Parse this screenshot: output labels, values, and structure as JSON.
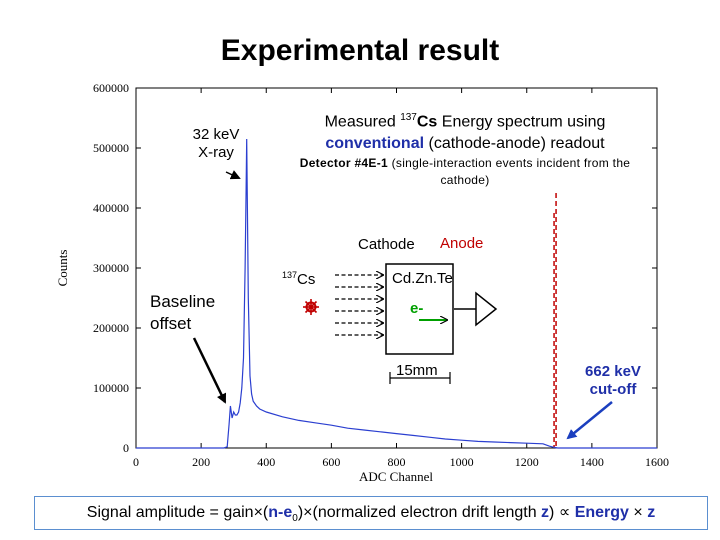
{
  "title": "Experimental result",
  "chart_data": {
    "type": "line",
    "xlabel": "ADC Channel",
    "ylabel": "Counts",
    "xlim": [
      0,
      1600
    ],
    "ylim": [
      0,
      600000
    ],
    "xticks": [
      0,
      200,
      400,
      600,
      800,
      1000,
      1200,
      1400,
      1600
    ],
    "yticks": [
      0,
      100000,
      200000,
      300000,
      400000,
      500000,
      600000
    ],
    "xtick_labels": [
      "0",
      "200",
      "400",
      "600",
      "800",
      "1000",
      "1200",
      "1400",
      "1600"
    ],
    "ytick_labels": [
      "0",
      "100000",
      "200000",
      "300000",
      "400000",
      "500000",
      "600000"
    ],
    "series": [
      {
        "color": "#2b3fd0",
        "x": [
          0,
          270,
          280,
          286,
          290,
          295,
          300,
          305,
          310,
          315,
          320,
          325,
          330,
          335,
          338,
          340,
          342,
          345,
          350,
          355,
          360,
          370,
          380,
          400,
          450,
          500,
          550,
          600,
          650,
          700,
          750,
          800,
          850,
          900,
          950,
          1000,
          1050,
          1100,
          1150,
          1200,
          1250,
          1270,
          1285,
          1295,
          1310,
          1600
        ],
        "y": [
          0,
          0,
          2000,
          40000,
          70000,
          50000,
          60000,
          55000,
          55000,
          60000,
          75000,
          100000,
          150000,
          300000,
          430000,
          515000,
          400000,
          250000,
          120000,
          90000,
          78000,
          70000,
          65000,
          60000,
          52000,
          46000,
          42000,
          38000,
          33000,
          30000,
          27000,
          24000,
          21000,
          18000,
          15000,
          13000,
          11000,
          10000,
          9000,
          8000,
          7000,
          3000,
          1000,
          0,
          0,
          0
        ]
      }
    ],
    "cutoff_x": 1290,
    "cutoff_color": "#c00000"
  },
  "labels": {
    "xray": "32 keV\nX-ray",
    "baseline": "Baseline\noffset",
    "measured_pre": "Measured ",
    "measured_sup": "137",
    "measured_cs": "Cs",
    "measured_post": " Energy spectrum using",
    "conventional": "conventional",
    "readout": " (cathode-anode) readout",
    "detector_bold": "Detector #4E-1",
    "detector_rest": " (single-interaction events incident from the cathode)",
    "cathode": "Cathode",
    "anode": "Anode",
    "source_sup": "137",
    "source_cs": "Cs",
    "czt": "Cd.Zn.Te",
    "electron": "e-",
    "length": "15mm",
    "cutoff": "662 keV\ncut-off"
  },
  "caption": {
    "p1": "Signal amplitude = gain×(",
    "n": "n-e",
    "sub": "0",
    "p2": ")×(normalized electron drift length ",
    "z": "z",
    "p3": ") ∝ ",
    "energy": "Energy",
    "p4": " × ",
    "z2": "z"
  },
  "colors": {
    "spectrum": "#2b3fd0",
    "cutoff": "#c00000",
    "accent": "#1f2fa8",
    "arrow_blue": "#1b3fbf"
  }
}
